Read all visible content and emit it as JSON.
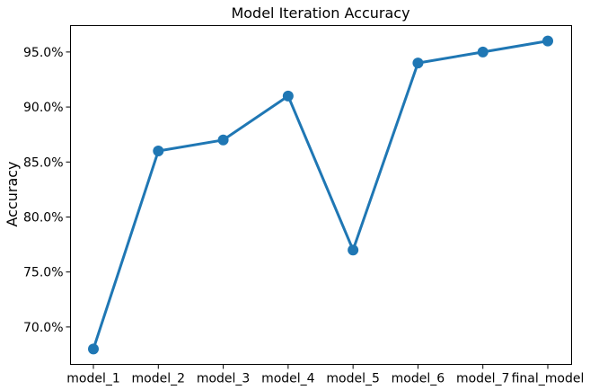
{
  "chart_data": {
    "type": "line",
    "title": "Model Iteration Accuracy",
    "xlabel": "",
    "ylabel": "Accuracy",
    "categories": [
      "model_1",
      "model_2",
      "model_3",
      "model_4",
      "model_5",
      "model_6",
      "model_7",
      "final_model"
    ],
    "series": [
      {
        "values": [
          68.0,
          86.0,
          87.0,
          91.0,
          77.0,
          94.0,
          95.0,
          96.0
        ],
        "color": "#1f77b4",
        "marker": "circle"
      }
    ],
    "ylim": [
      66.6,
      97.4
    ],
    "yticks": [
      70.0,
      75.0,
      80.0,
      85.0,
      90.0,
      95.0
    ],
    "ytick_labels": [
      "70.0%",
      "75.0%",
      "80.0%",
      "85.0%",
      "90.0%",
      "95.0%"
    ],
    "grid": false,
    "legend": "none"
  }
}
